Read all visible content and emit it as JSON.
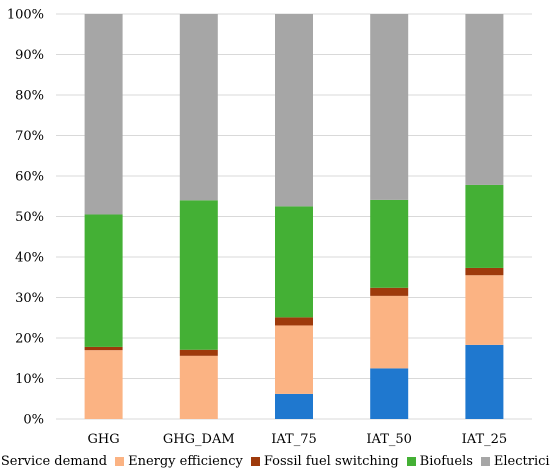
{
  "chart_data": {
    "type": "bar",
    "stacked": true,
    "percent": true,
    "categories": [
      "GHG",
      "GHG_DAM",
      "IAT_75",
      "IAT_50",
      "IAT_25"
    ],
    "series": [
      {
        "name": "Service demand",
        "color": "#1F78CF",
        "values": [
          0.0,
          0.0,
          6.2,
          12.5,
          18.3
        ]
      },
      {
        "name": "Energy efficiency",
        "color": "#FBB383",
        "values": [
          17.0,
          15.6,
          16.9,
          17.9,
          17.2
        ]
      },
      {
        "name": "Fossil fuel switching",
        "color": "#9E3A0B",
        "values": [
          0.8,
          1.5,
          2.0,
          2.0,
          1.8
        ]
      },
      {
        "name": "Biofuels",
        "color": "#44B035",
        "values": [
          32.7,
          36.9,
          27.4,
          21.7,
          20.5
        ]
      },
      {
        "name": "Electricity",
        "color": "#A6A6A6",
        "values": [
          49.5,
          46.0,
          47.5,
          45.9,
          42.2
        ]
      }
    ],
    "ylim": [
      0,
      100
    ],
    "yticks": [
      "0%",
      "10%",
      "20%",
      "30%",
      "40%",
      "50%",
      "60%",
      "70%",
      "80%",
      "90%",
      "100%"
    ],
    "gridlines": true,
    "grid_color": "#D9D9D9",
    "legend_position": "bottom"
  }
}
